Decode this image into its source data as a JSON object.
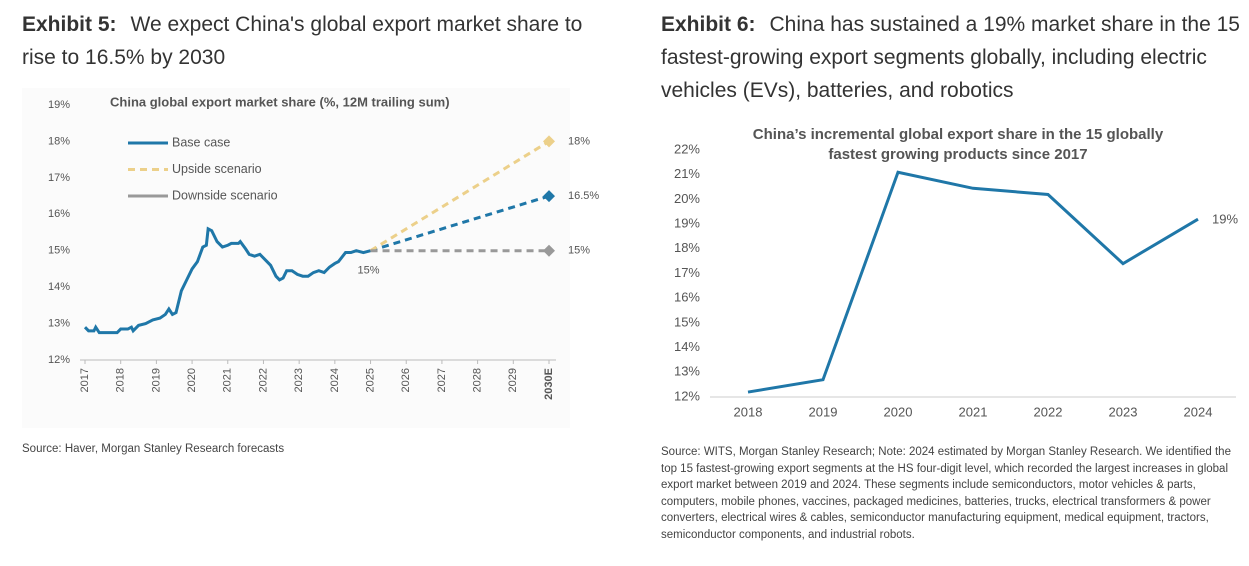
{
  "chart_data": [
    {
      "type": "line",
      "exhibit": "Exhibit 5:",
      "heading": "We expect China's global export market share to rise to 16.5% by 2030",
      "title": "China global export market share (%, 12M trailing sum)",
      "source": "Source: Haver, Morgan Stanley Research forecasts",
      "xlim": [
        2017,
        2030
      ],
      "xticks": [
        2017,
        2018,
        2019,
        2020,
        2021,
        2022,
        2023,
        2024,
        2025,
        2026,
        2027,
        2028,
        2029,
        {
          "value": 2030,
          "label": "2030E"
        }
      ],
      "ylim": [
        12,
        19
      ],
      "yticks": [
        {
          "value": 12,
          "label": "12%"
        },
        {
          "value": 13,
          "label": "13%"
        },
        {
          "value": 14,
          "label": "14%"
        },
        {
          "value": 15,
          "label": "15%"
        },
        {
          "value": 16,
          "label": "16%"
        },
        {
          "value": 17,
          "label": "17%"
        },
        {
          "value": 18,
          "label": "18%"
        },
        {
          "value": 19,
          "label": "19%"
        }
      ],
      "forecast_start": 2025,
      "series": [
        {
          "name": "Base case",
          "color": "#1f77a8",
          "x": [
            2017.0,
            2017.1,
            2017.25,
            2017.3,
            2017.4,
            2017.6,
            2017.9,
            2018.0,
            2018.2,
            2018.3,
            2018.35,
            2018.5,
            2018.7,
            2018.9,
            2019.1,
            2019.25,
            2019.35,
            2019.45,
            2019.55,
            2019.7,
            2019.85,
            2020.0,
            2020.15,
            2020.3,
            2020.4,
            2020.45,
            2020.55,
            2020.7,
            2020.85,
            2021.0,
            2021.1,
            2021.3,
            2021.35,
            2021.5,
            2021.6,
            2021.75,
            2021.9,
            2022.05,
            2022.2,
            2022.35,
            2022.45,
            2022.55,
            2022.65,
            2022.8,
            2022.95,
            2023.1,
            2023.25,
            2023.4,
            2023.55,
            2023.7,
            2023.85,
            2024.0,
            2024.1,
            2024.3,
            2024.45,
            2024.6,
            2024.8,
            2025.0,
            2030.0
          ],
          "values": [
            12.9,
            12.8,
            12.8,
            12.9,
            12.75,
            12.75,
            12.75,
            12.85,
            12.85,
            12.9,
            12.8,
            12.95,
            13.0,
            13.1,
            13.15,
            13.25,
            13.4,
            13.25,
            13.3,
            13.9,
            14.2,
            14.5,
            14.7,
            15.1,
            15.15,
            15.6,
            15.55,
            15.25,
            15.1,
            15.15,
            15.2,
            15.2,
            15.25,
            15.05,
            14.9,
            14.85,
            14.9,
            14.75,
            14.6,
            14.3,
            14.2,
            14.25,
            14.45,
            14.45,
            14.35,
            14.3,
            14.3,
            14.4,
            14.45,
            14.4,
            14.55,
            14.65,
            14.7,
            14.95,
            14.95,
            15.0,
            14.95,
            15,
            16.5
          ],
          "value_labels": [
            null,
            null,
            null,
            null,
            null,
            null,
            null,
            null,
            null,
            null,
            null,
            null,
            null,
            null,
            null,
            null,
            null,
            null,
            null,
            null,
            null,
            null,
            null,
            null,
            null,
            null,
            null,
            null,
            null,
            null,
            null,
            null,
            null,
            null,
            null,
            null,
            null,
            null,
            null,
            null,
            null,
            null,
            null,
            null,
            null,
            null,
            null,
            null,
            null,
            null,
            null,
            null,
            null,
            null,
            null,
            null,
            null,
            "15%",
            "16.5%"
          ]
        },
        {
          "name": "Upside scenario",
          "color": "#ecd08a",
          "x": [
            2025,
            2030
          ],
          "values": [
            15,
            18
          ],
          "value_labels": [
            null,
            "18%"
          ]
        },
        {
          "name": "Downside scenario",
          "color": "#999999",
          "x": [
            2025,
            2030
          ],
          "values": [
            15,
            15
          ],
          "value_labels": [
            null,
            "15%"
          ]
        }
      ]
    },
    {
      "type": "line",
      "exhibit": "Exhibit 6:",
      "heading": "China has sustained a 19% market share in the 15 fastest-growing export segments globally, including electric vehicles (EVs), batteries, and robotics",
      "title": [
        "China’s incremental global export share in the 15 globally",
        "fastest growing products since 2017"
      ],
      "source": "Source: WITS, Morgan Stanley Research; Note: 2024 estimated by Morgan Stanley Research. We identified the top 15 fastest-growing export segments at the HS four-digit level, which recorded the largest increases in global export market between 2019 and 2024. These segments include semiconductors, motor vehicles & parts, computers, mobile phones, vaccines, packaged medicines, batteries, trucks, electrical transformers & power converters, electrical wires & cables, semiconductor manufacturing equipment, medical equipment, tractors, semiconductor components, and industrial robots.",
      "categories": [
        "2018",
        "2019",
        "2020",
        "2021",
        "2022",
        "2023",
        "2024"
      ],
      "values": [
        12.2,
        12.7,
        21.1,
        20.45,
        20.2,
        17.4,
        19.2
      ],
      "value_labels": [
        null,
        null,
        null,
        null,
        null,
        null,
        "19%"
      ],
      "color": "#1f77a8",
      "ylim": [
        12,
        22
      ],
      "yticks": [
        {
          "value": 12,
          "label": "12%"
        },
        {
          "value": 13,
          "label": "13%"
        },
        {
          "value": 14,
          "label": "14%"
        },
        {
          "value": 15,
          "label": "15%"
        },
        {
          "value": 16,
          "label": "16%"
        },
        {
          "value": 17,
          "label": "17%"
        },
        {
          "value": 18,
          "label": "18%"
        },
        {
          "value": 19,
          "label": "19%"
        },
        {
          "value": 20,
          "label": "20%"
        },
        {
          "value": 21,
          "label": "21%"
        },
        {
          "value": 22,
          "label": "22%"
        }
      ]
    }
  ]
}
